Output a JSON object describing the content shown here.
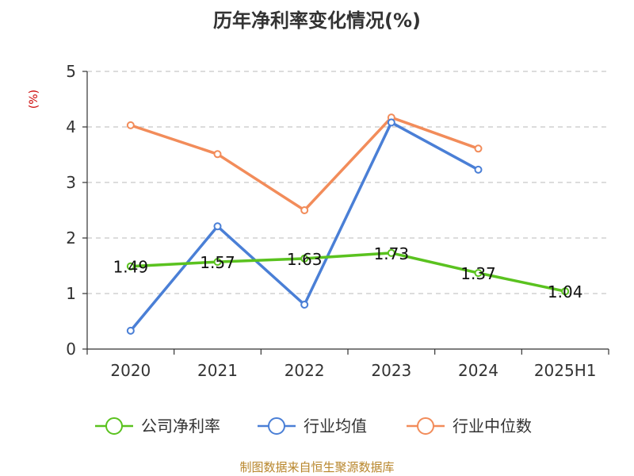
{
  "chart_data": {
    "type": "line",
    "title": "历年净利率变化情况(%)",
    "ylabel": "(%)",
    "xlabel": "",
    "ylim": [
      0,
      5
    ],
    "yticks": [
      "0",
      "1",
      "2",
      "3",
      "4",
      "5"
    ],
    "categories": [
      "2020",
      "2021",
      "2022",
      "2023",
      "2024",
      "2025H1"
    ],
    "grid": true,
    "legend_position": "bottom",
    "series": [
      {
        "name": "公司净利率",
        "color": "#5ac21f",
        "values": [
          1.49,
          1.57,
          1.63,
          1.73,
          1.37,
          1.04
        ],
        "labels": [
          "1.49",
          "1.57",
          "1.63",
          "1.73",
          "1.37",
          "1.04"
        ]
      },
      {
        "name": "行业均值",
        "color": "#4a7fd6",
        "values": [
          0.33,
          2.21,
          0.8,
          4.08,
          3.23,
          null
        ]
      },
      {
        "name": "行业中位数",
        "color": "#f28c5a",
        "values": [
          4.03,
          3.51,
          2.5,
          4.17,
          3.61,
          null
        ]
      }
    ],
    "source": "制图数据来自恒生聚源数据库"
  }
}
